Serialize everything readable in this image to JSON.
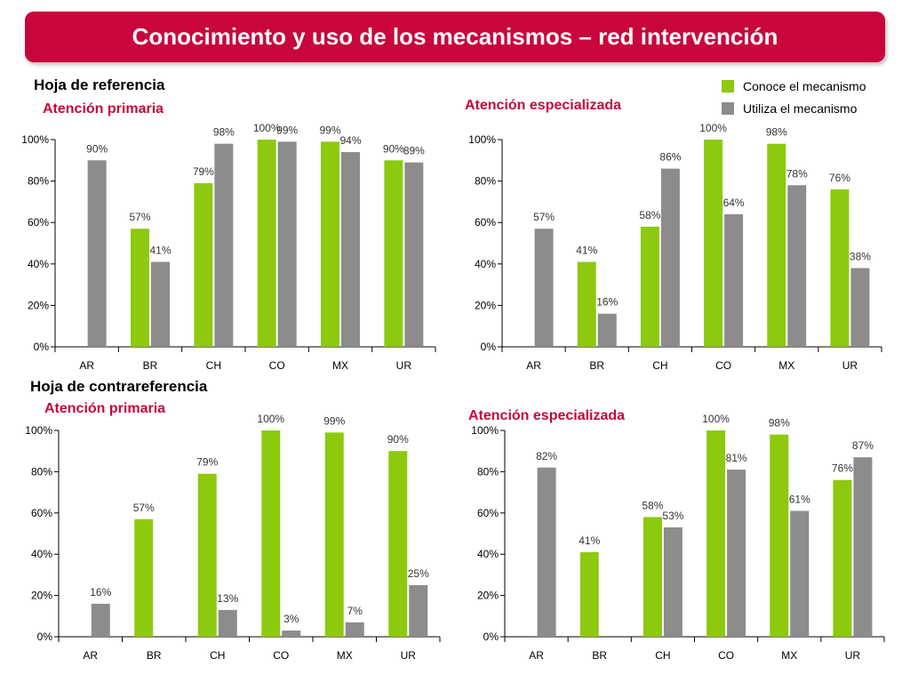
{
  "page": {
    "title": "Conocimiento y uso de los mecanismos – red intervención",
    "section_reference": "Hoja de referencia",
    "section_counter": "Hoja de contrareferencia"
  },
  "legend": {
    "items": [
      {
        "label": "Conoce el mecanismo",
        "color": "#8dc90f"
      },
      {
        "label": "Utiliza el mecanismo",
        "color": "#8c8c8c"
      }
    ]
  },
  "chart_data": [
    {
      "type": "bar",
      "title": "Atención primaria",
      "categories": [
        "AR",
        "BR",
        "CH",
        "CO",
        "MX",
        "UR"
      ],
      "series": [
        {
          "name": "Conoce el mecanismo",
          "values": [
            null,
            57,
            79,
            100,
            99,
            90
          ]
        },
        {
          "name": "Utiliza el mecanismo",
          "values": [
            90,
            41,
            98,
            99,
            94,
            89
          ]
        }
      ],
      "yticks": [
        "0%",
        "20%",
        "40%",
        "60%",
        "80%",
        "100%"
      ],
      "ylim": [
        0,
        100
      ],
      "legend_position": "top-right",
      "grid": false
    },
    {
      "type": "bar",
      "title": "Atención especializada",
      "categories": [
        "AR",
        "BR",
        "CH",
        "CO",
        "MX",
        "UR"
      ],
      "series": [
        {
          "name": "Conoce el mecanismo",
          "values": [
            null,
            41,
            58,
            100,
            98,
            76
          ]
        },
        {
          "name": "Utiliza el mecanismo",
          "values": [
            57,
            16,
            86,
            64,
            78,
            38
          ]
        }
      ],
      "yticks": [
        "0%",
        "20%",
        "40%",
        "60%",
        "80%",
        "100%"
      ],
      "ylim": [
        0,
        100
      ],
      "grid": false
    },
    {
      "type": "bar",
      "title": "Atención primaria",
      "categories": [
        "AR",
        "BR",
        "CH",
        "CO",
        "MX",
        "UR"
      ],
      "series": [
        {
          "name": "Conoce el mecanismo",
          "values": [
            null,
            57,
            79,
            100,
            99,
            90
          ]
        },
        {
          "name": "Utiliza el mecanismo",
          "values": [
            16,
            null,
            13,
            3,
            7,
            25
          ]
        }
      ],
      "yticks": [
        "0%",
        "20%",
        "40%",
        "60%",
        "80%",
        "100%"
      ],
      "ylim": [
        0,
        100
      ],
      "grid": false
    },
    {
      "type": "bar",
      "title": "Atención especializada",
      "categories": [
        "AR",
        "BR",
        "CH",
        "CO",
        "MX",
        "UR"
      ],
      "series": [
        {
          "name": "Conoce el mecanismo",
          "values": [
            null,
            41,
            58,
            100,
            98,
            76
          ]
        },
        {
          "name": "Utiliza el mecanismo",
          "values": [
            82,
            null,
            53,
            81,
            61,
            87
          ]
        }
      ],
      "yticks": [
        "0%",
        "20%",
        "40%",
        "60%",
        "80%",
        "100%"
      ],
      "ylim": [
        0,
        100
      ],
      "grid": false
    }
  ]
}
